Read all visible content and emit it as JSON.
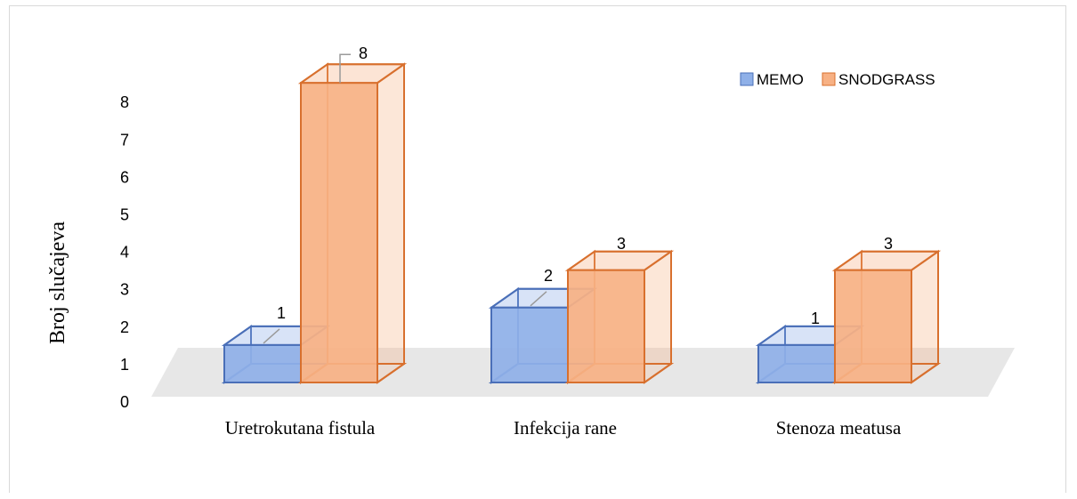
{
  "chart_data": {
    "type": "bar",
    "title": "",
    "xlabel": "",
    "ylabel": "Broj slučajeva",
    "categories": [
      "Uretrokutana fistula",
      "Infekcija rane",
      "Stenoza meatusa"
    ],
    "series": [
      {
        "name": "MEMO",
        "values": [
          1,
          2,
          1
        ],
        "color": "#8fb0e8",
        "stroke": "#4a6fb8"
      },
      {
        "name": "SNODGRASS",
        "values": [
          8,
          3,
          3
        ],
        "color": "#f7b184",
        "stroke": "#d8702e"
      }
    ],
    "ylim": [
      0,
      8
    ],
    "yticks": [
      0,
      1,
      2,
      3,
      4,
      5,
      6,
      7,
      8
    ],
    "legend_position": "top-right",
    "grid": false,
    "style": "3d-clustered-column"
  }
}
